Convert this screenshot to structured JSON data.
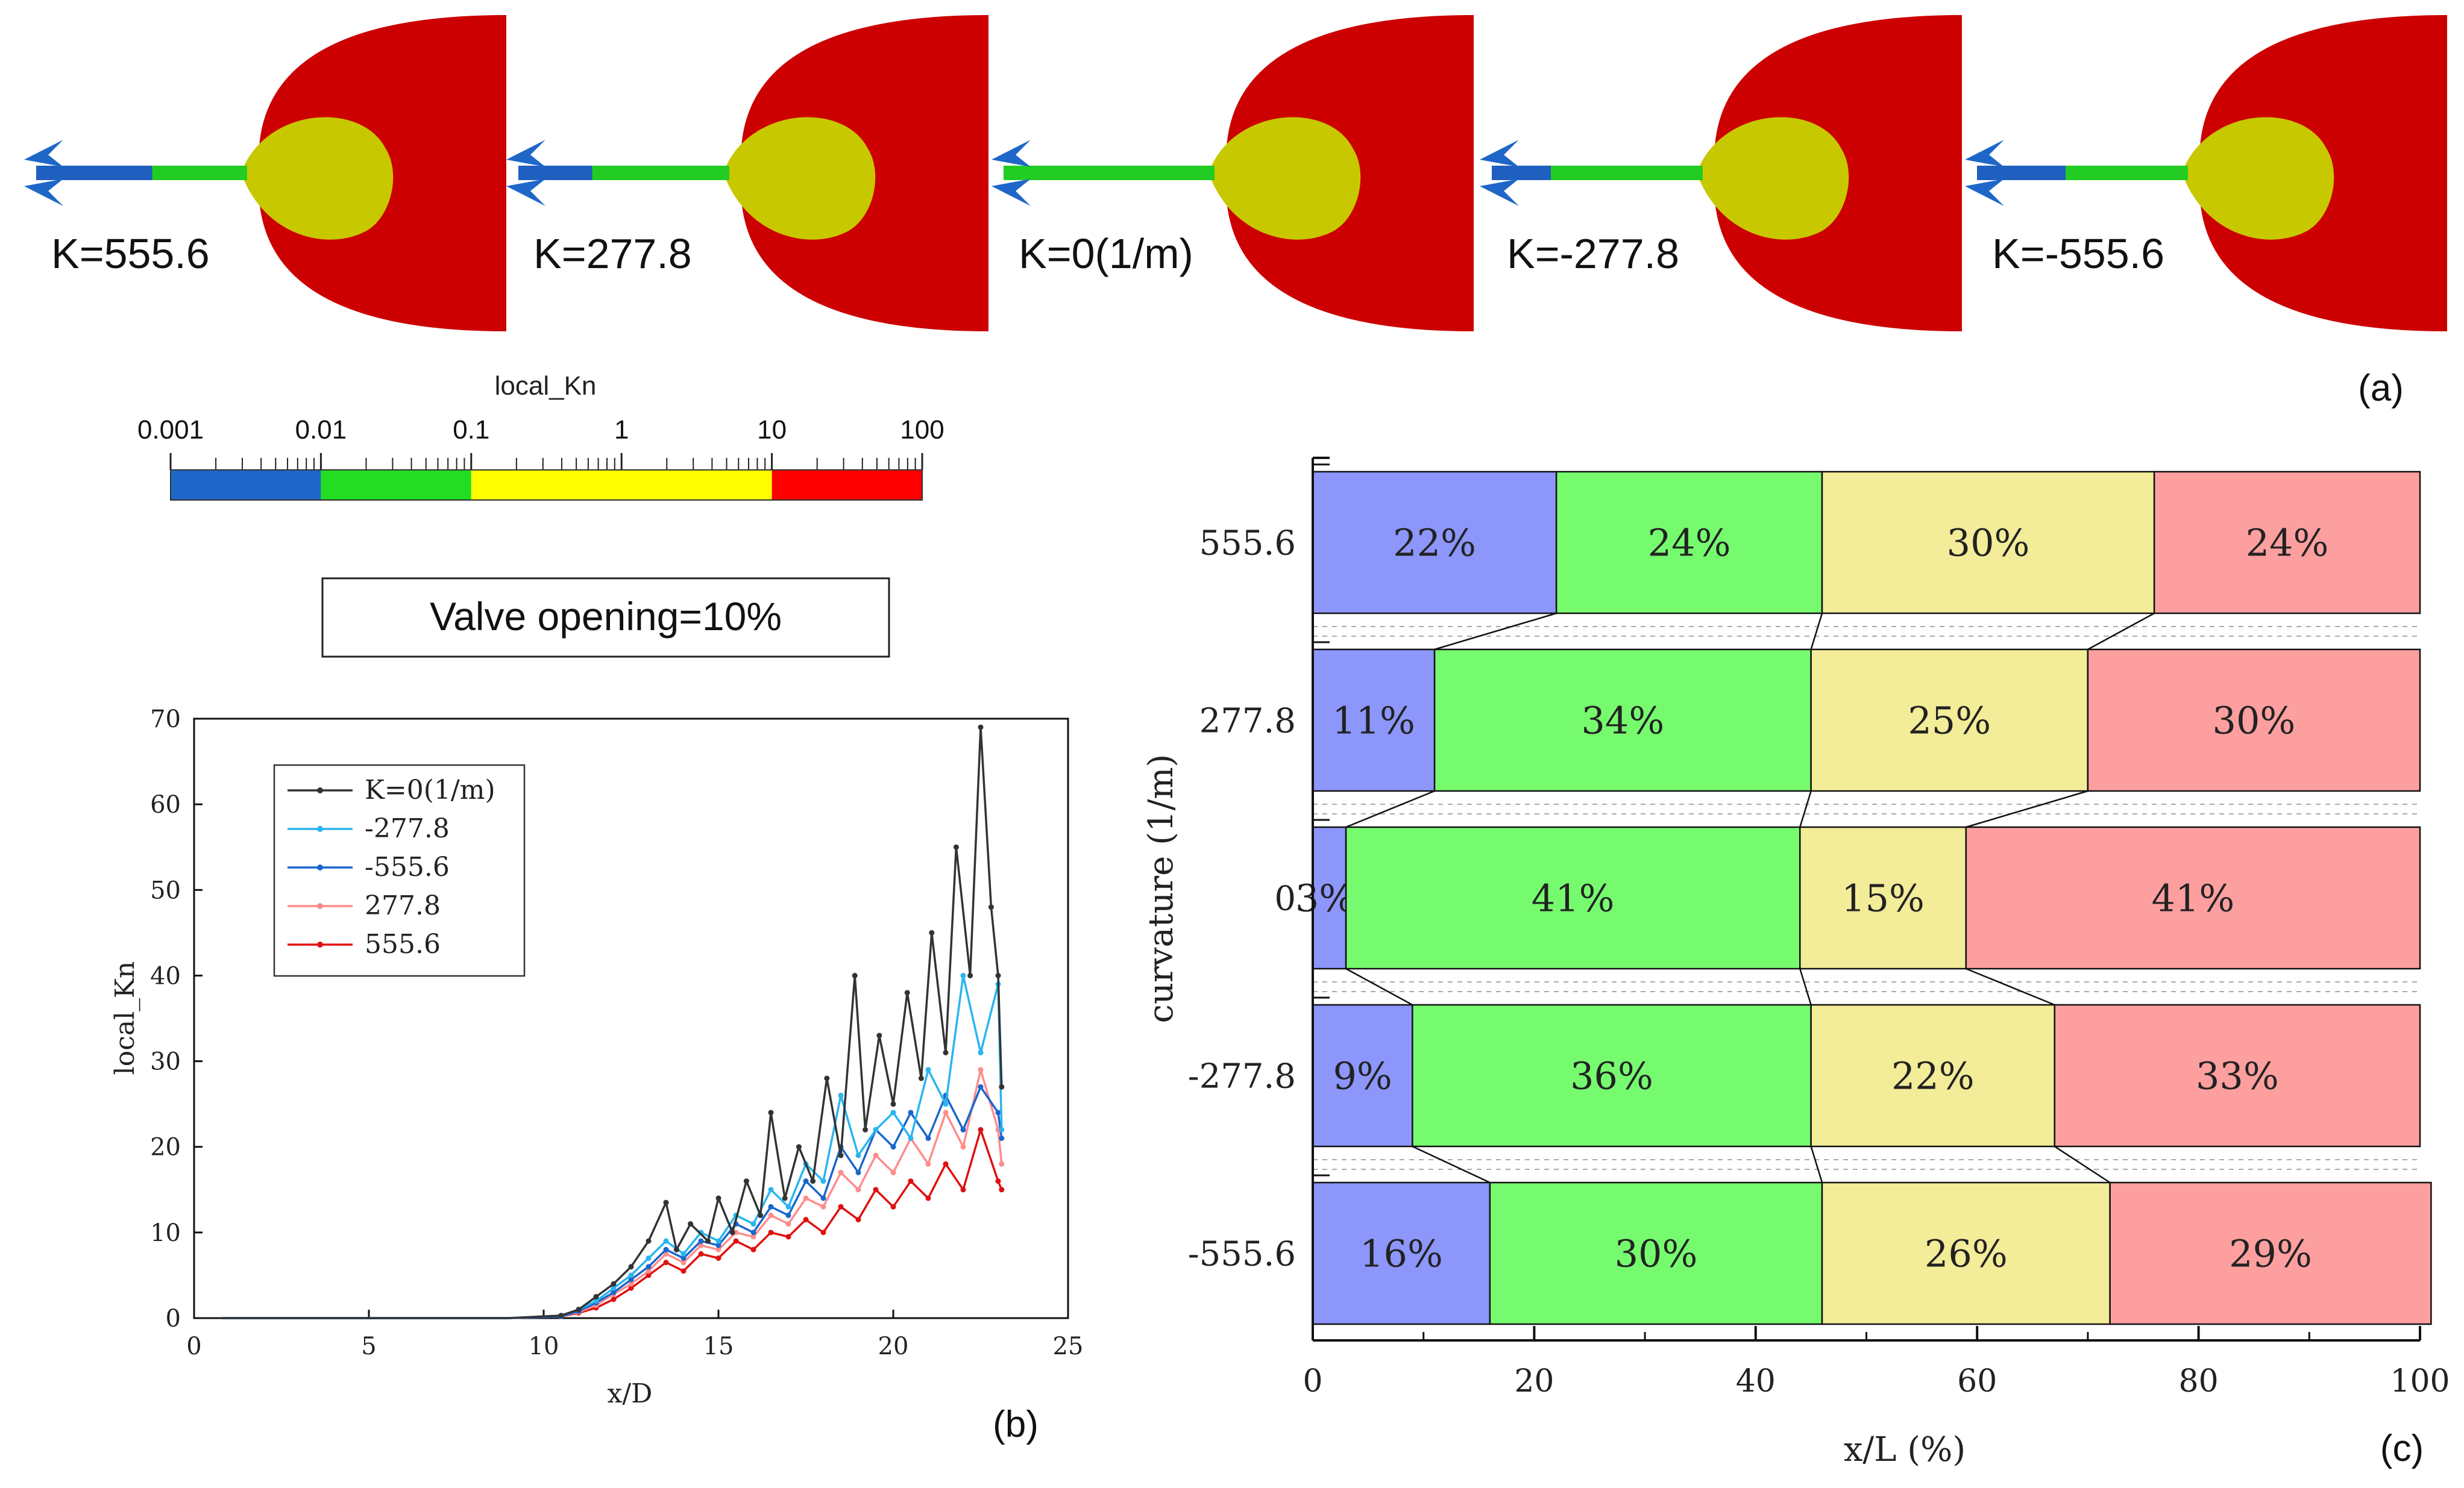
{
  "colors": {
    "blue": "#1f5fbf",
    "arrow_blue": "#1e67c9",
    "green": "#22cc22",
    "yellow": "#c8c800",
    "red": "#cc0000",
    "bar_blue": "#8c96fb",
    "bar_green": "#76fb6f",
    "bar_yellow": "#f3ec98",
    "bar_red": "#fd9f9f",
    "line_black": "#333333",
    "line_lightblue": "#29b5f0",
    "line_blue": "#1a66cc",
    "line_pink": "#ff8c8c",
    "line_red": "#e01010"
  },
  "panel_a": {
    "label": "(a)",
    "shapes": [
      {
        "label": "K=555.6",
        "green_frac": 0.45,
        "tip_frac": 1.0
      },
      {
        "label": "K=277.8",
        "green_frac": 0.65,
        "tip_frac": 0.82
      },
      {
        "label": "K=0(1/m)",
        "green_frac": 1.0,
        "tip_frac": 0.55
      },
      {
        "label": "K=-277.8",
        "green_frac": 0.72,
        "tip_frac": 0.78
      },
      {
        "label": "K=-555.6",
        "green_frac": 0.58,
        "tip_frac": 0.86
      }
    ]
  },
  "colorbar": {
    "title": "local_Kn",
    "ticks": [
      "0.001",
      "0.01",
      "0.1",
      "1",
      "10",
      "100"
    ]
  },
  "valve_label": "Valve opening=10%",
  "chart_data": [
    {
      "id": "b",
      "type": "line",
      "panel_label": "(b)",
      "xlabel": "x/D",
      "ylabel": "local_Kn",
      "xlim": [
        0,
        25
      ],
      "ylim": [
        0,
        70
      ],
      "xticks": [
        "0",
        "5",
        "10",
        "15",
        "20",
        "25"
      ],
      "yticks": [
        "0",
        "10",
        "20",
        "30",
        "40",
        "50",
        "60",
        "70"
      ],
      "legend": [
        "K=0(1/m)",
        "-277.8",
        "-555.6",
        "277.8",
        "555.6"
      ],
      "series": [
        {
          "name": "K=0(1/m)",
          "color": "#333333",
          "x": [
            0.8,
            3,
            6,
            9,
            10.5,
            11,
            11.5,
            12,
            12.5,
            13,
            13.5,
            13.8,
            14.2,
            14.7,
            15,
            15.4,
            15.8,
            16.2,
            16.5,
            16.9,
            17.3,
            17.7,
            18.1,
            18.5,
            18.9,
            19.2,
            19.6,
            20,
            20.4,
            20.8,
            21.1,
            21.5,
            21.8,
            22.2,
            22.5,
            22.8,
            23.0,
            23.1
          ],
          "y": [
            0,
            0,
            0,
            0,
            0.3,
            1,
            2.5,
            4,
            6,
            9,
            13.5,
            8,
            11,
            9,
            14,
            10,
            16,
            12,
            24,
            14,
            20,
            16,
            28,
            19,
            40,
            22,
            33,
            25,
            38,
            28,
            45,
            31,
            55,
            40,
            69,
            48,
            40,
            27
          ]
        },
        {
          "name": "-277.8",
          "color": "#29b5f0",
          "x": [
            0.8,
            3,
            6,
            9,
            10.5,
            11,
            11.5,
            12,
            12.5,
            13,
            13.5,
            14,
            14.5,
            15,
            15.5,
            16,
            16.5,
            17,
            17.5,
            18,
            18.5,
            19,
            19.5,
            20,
            20.5,
            21,
            21.5,
            22,
            22.5,
            23.0,
            23.1
          ],
          "y": [
            0,
            0,
            0,
            0,
            0.3,
            1,
            2,
            3.5,
            5,
            7,
            9,
            7.5,
            10,
            9,
            12,
            11,
            15,
            13,
            18,
            16,
            26,
            19,
            22,
            24,
            21,
            29,
            25,
            40,
            31,
            39,
            22
          ]
        },
        {
          "name": "-555.6",
          "color": "#1a66cc",
          "x": [
            0.8,
            3,
            6,
            9,
            10.5,
            11,
            11.5,
            12,
            12.5,
            13,
            13.5,
            14,
            14.5,
            15,
            15.5,
            16,
            16.5,
            17,
            17.5,
            18,
            18.5,
            19,
            19.5,
            20,
            20.5,
            21,
            21.5,
            22,
            22.5,
            23.0,
            23.1
          ],
          "y": [
            0,
            0,
            0,
            0,
            0.2,
            0.8,
            1.8,
            3,
            4.5,
            6,
            8,
            7,
            9,
            8.5,
            11,
            10,
            13,
            12,
            16,
            14,
            20,
            17,
            22,
            20,
            24,
            21,
            26,
            22,
            27,
            24,
            21
          ]
        },
        {
          "name": "277.8",
          "color": "#ff8c8c",
          "x": [
            0.8,
            3,
            6,
            9,
            10.5,
            11,
            11.5,
            12,
            12.5,
            13,
            13.5,
            14,
            14.5,
            15,
            15.5,
            16,
            16.5,
            17,
            17.5,
            18,
            18.5,
            19,
            19.5,
            20,
            20.5,
            21,
            21.5,
            22,
            22.5,
            23.0,
            23.1
          ],
          "y": [
            0,
            0,
            0,
            0,
            0.2,
            0.7,
            1.5,
            2.8,
            4,
            5.5,
            7.5,
            6.5,
            8.5,
            8,
            10,
            9.5,
            12,
            11,
            14,
            13,
            17,
            15,
            19,
            17,
            21,
            18,
            24,
            20,
            29,
            22,
            18
          ]
        },
        {
          "name": "555.6",
          "color": "#e01010",
          "x": [
            0.8,
            3,
            6,
            9,
            10.5,
            11,
            11.5,
            12,
            12.5,
            13,
            13.5,
            14,
            14.5,
            15,
            15.5,
            16,
            16.5,
            17,
            17.5,
            18,
            18.5,
            19,
            19.5,
            20,
            20.5,
            21,
            21.5,
            22,
            22.5,
            23.0,
            23.1
          ],
          "y": [
            0,
            0,
            0,
            0,
            0.2,
            0.6,
            1.2,
            2.2,
            3.5,
            5,
            6.5,
            5.5,
            7.5,
            7,
            9,
            8,
            10,
            9.5,
            11.5,
            10,
            13,
            11.5,
            15,
            13,
            16,
            14,
            18,
            15,
            22,
            16,
            15
          ]
        }
      ]
    },
    {
      "id": "c",
      "type": "bar",
      "stacked": true,
      "orientation": "horizontal",
      "panel_label": "(c)",
      "xlabel": "x/L (%)",
      "ylabel": "curvature (1/m)",
      "xlim": [
        0,
        100
      ],
      "xticks": [
        "0",
        "20",
        "40",
        "60",
        "80",
        "100"
      ],
      "categories": [
        "555.6",
        "277.8",
        "0",
        "-277.8",
        "-555.6"
      ],
      "series": [
        {
          "name": "0.001-0.01",
          "color": "#8c96fb",
          "values": [
            22,
            11,
            3,
            9,
            16
          ],
          "labels": [
            "22%",
            "11%",
            "3%",
            "9%",
            "16%"
          ]
        },
        {
          "name": "0.01-0.1",
          "color": "#76fb6f",
          "values": [
            24,
            34,
            41,
            36,
            30
          ],
          "labels": [
            "24%",
            "34%",
            "41%",
            "36%",
            "30%"
          ]
        },
        {
          "name": "0.1-10",
          "color": "#f3ec98",
          "values": [
            30,
            25,
            15,
            22,
            26
          ],
          "labels": [
            "30%",
            "25%",
            "15%",
            "22%",
            "26%"
          ]
        },
        {
          "name": "10-100",
          "color": "#fd9f9f",
          "values": [
            24,
            30,
            41,
            33,
            29
          ],
          "labels": [
            "24%",
            "30%",
            "41%",
            "33%",
            "29%"
          ]
        }
      ]
    }
  ]
}
